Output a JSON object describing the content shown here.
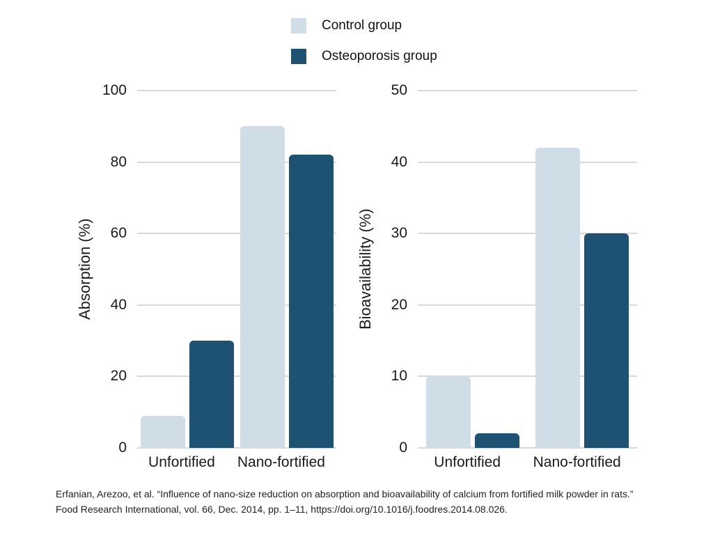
{
  "colors": {
    "control": "#cfdde6",
    "osteoporosis": "#1e5272",
    "gridline": "#d9d9d9",
    "text": "#1a1a1a",
    "background": "#ffffff"
  },
  "legend": {
    "items": [
      {
        "label": "Control group",
        "color": "#cfdde6"
      },
      {
        "label": "Osteoporosis group",
        "color": "#1e5272"
      }
    ]
  },
  "chart_data": [
    {
      "type": "bar",
      "title": "",
      "ylabel": "Absorption (%)",
      "xlabel": "",
      "categories": [
        "Unfortified",
        "Nano-fortified"
      ],
      "series": [
        {
          "name": "Control group",
          "color": "#cfdde6",
          "values": [
            9,
            90
          ]
        },
        {
          "name": "Osteoporosis group",
          "color": "#1e5272",
          "values": [
            30,
            82
          ]
        }
      ],
      "ylim": [
        0,
        100
      ],
      "yticks": [
        0,
        20,
        40,
        60,
        80,
        100
      ],
      "grid": true,
      "legend_position": "top-center"
    },
    {
      "type": "bar",
      "title": "",
      "ylabel": "Bioavailability (%)",
      "xlabel": "",
      "categories": [
        "Unfortified",
        "Nano-fortified"
      ],
      "series": [
        {
          "name": "Control group",
          "color": "#cfdde6",
          "values": [
            10,
            42
          ]
        },
        {
          "name": "Osteoporosis group",
          "color": "#1e5272",
          "values": [
            2,
            30
          ]
        }
      ],
      "ylim": [
        0,
        50
      ],
      "yticks": [
        0,
        10,
        20,
        30,
        40,
        50
      ],
      "grid": true,
      "legend_position": "top-center"
    }
  ],
  "citation": {
    "lines": [
      "Erfanian, Arezoo, et al. “Influence of nano-size reduction on absorption and bioavailability of calcium from fortified milk powder in rats.”",
      "Food Research International, vol. 66, Dec. 2014, pp. 1–11, https://doi.org/10.1016/j.foodres.2014.08.026."
    ]
  }
}
